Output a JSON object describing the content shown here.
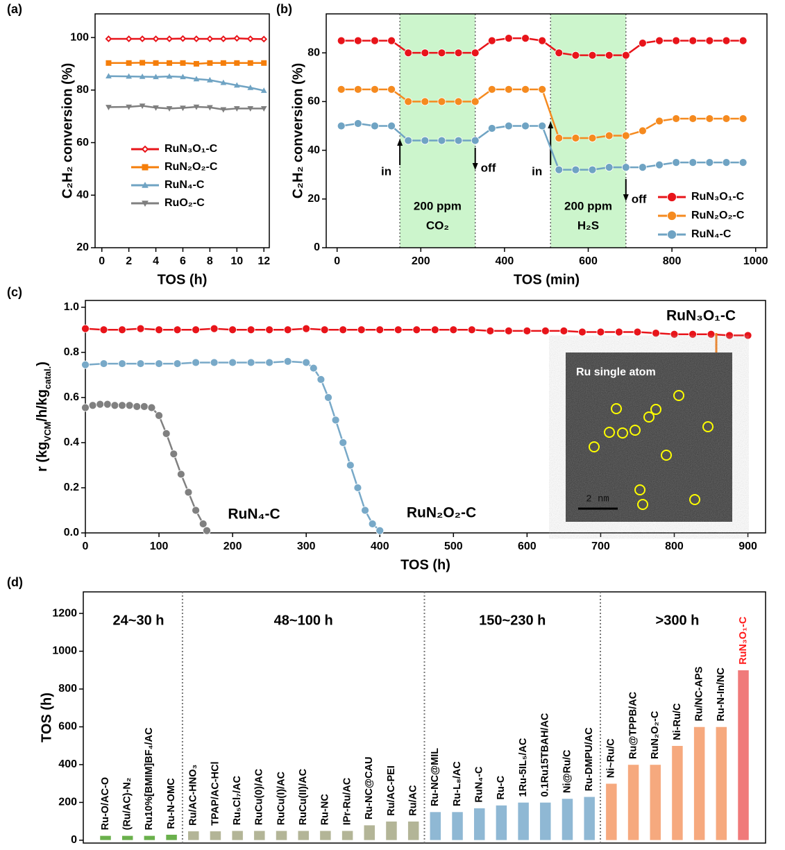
{
  "chart_data": [
    {
      "type": "line",
      "panel_label": "(a)",
      "xlabel": "TOS (h)",
      "ylabel": "C₂H₂ conversion (%)",
      "xlim": [
        -0.5,
        12.4
      ],
      "ylim": [
        20,
        109
      ],
      "xticks": [
        0,
        2,
        4,
        6,
        8,
        10,
        12
      ],
      "yticks": [
        20,
        40,
        60,
        80,
        100
      ],
      "legend": "center",
      "x": [
        0.5,
        2,
        3,
        4,
        5,
        6,
        7,
        8,
        9,
        10,
        11,
        12
      ],
      "series": [
        {
          "name": "RuN₃O₁-C",
          "color": "#e8141a",
          "marker": "diamond",
          "values": [
            99.5,
            99.5,
            99.5,
            99.5,
            99.5,
            99.6,
            99.5,
            99.5,
            99.5,
            99.7,
            99.5,
            99.4
          ]
        },
        {
          "name": "RuN₂O₂-C",
          "color": "#f57e0a",
          "marker": "square",
          "values": [
            90.3,
            90.3,
            90.4,
            90.3,
            90.3,
            90.3,
            90.0,
            90.3,
            90.3,
            90.3,
            90.3,
            90.3
          ]
        },
        {
          "name": "RuN₄-C",
          "color": "#6fa3c3",
          "marker": "triangle",
          "values": [
            85.3,
            85.2,
            85.1,
            85.0,
            85.2,
            85.0,
            84.2,
            83.8,
            82.8,
            81.8,
            80.9,
            79.8
          ]
        },
        {
          "name": "RuO₂-C",
          "color": "#7f7f7f",
          "marker": "triangle-down",
          "values": [
            73.5,
            73.6,
            74.0,
            73.3,
            73.0,
            73.2,
            73.6,
            73.4,
            72.6,
            73.0,
            73.0,
            73.0
          ]
        }
      ]
    },
    {
      "type": "line",
      "panel_label": "(b)",
      "xlabel": "TOS (min)",
      "ylabel": "C₂H₂ conversion (%)",
      "xlim": [
        -26,
        1027
      ],
      "ylim": [
        0,
        96
      ],
      "xticks": [
        0,
        200,
        400,
        600,
        800,
        1000
      ],
      "yticks": [
        0,
        20,
        40,
        60,
        80
      ],
      "legend": "lower right",
      "regions": [
        {
          "x": [
            150,
            330
          ],
          "label": [
            "200 ppm",
            "CO₂"
          ],
          "start_label": "in",
          "end_label": "off",
          "color": "#ccf5cc"
        },
        {
          "x": [
            510,
            690
          ],
          "label": [
            "200 ppm",
            "H₂S"
          ],
          "start_label": "in",
          "end_label": "off",
          "color": "#ccf5cc"
        }
      ],
      "x": [
        10,
        50,
        90,
        130,
        170,
        210,
        250,
        290,
        330,
        370,
        410,
        450,
        490,
        530,
        570,
        610,
        650,
        690,
        730,
        770,
        810,
        850,
        890,
        930,
        970
      ],
      "series": [
        {
          "name": "RuN₃O₁-C",
          "color": "#e8141a",
          "marker": "circle",
          "values": [
            85,
            85,
            85,
            85,
            80,
            80,
            80,
            80,
            80,
            85,
            86,
            86,
            85,
            80,
            79,
            79,
            79,
            79,
            84,
            85,
            85,
            85,
            85,
            85,
            85
          ]
        },
        {
          "name": "RuN₂O₂-C",
          "color": "#f58a1f",
          "marker": "circle",
          "values": [
            65,
            65,
            65,
            65,
            60,
            60,
            60,
            60,
            60,
            65,
            65,
            65,
            65,
            45,
            45,
            45,
            46,
            46,
            48,
            52,
            53,
            53,
            53,
            53,
            53
          ]
        },
        {
          "name": "RuN₄-C",
          "color": "#6fa3c3",
          "marker": "circle",
          "values": [
            50,
            51,
            50,
            50,
            44,
            44,
            44,
            44,
            44,
            49,
            50,
            50,
            50,
            32,
            32,
            32,
            33,
            33,
            33,
            34,
            35,
            35,
            35,
            35,
            35
          ]
        }
      ]
    },
    {
      "type": "line",
      "panel_label": "(c)",
      "xlabel": "TOS (h)",
      "ylabel": [
        "r (kg",
        "VCM",
        "/h/kg",
        "catal.",
        ")"
      ],
      "xlim": [
        0,
        924
      ],
      "ylim": [
        0,
        1.03
      ],
      "xticks": [
        0,
        100,
        200,
        300,
        400,
        500,
        600,
        700,
        800,
        900
      ],
      "yticks": [
        {
          "value": 0,
          "label": "0.0"
        },
        0.2,
        0.4,
        0.6,
        0.8,
        {
          "value": 1,
          "label": "1.0"
        }
      ],
      "legend": "on-lines",
      "inset": {
        "title": "Ru single atom",
        "scale_bar": "2 nm"
      },
      "series": [
        {
          "name": "RuN₃O₁-C",
          "color": "#e8141a",
          "marker": "circle",
          "x": [
            0,
            25,
            50,
            75,
            100,
            125,
            150,
            175,
            200,
            225,
            250,
            275,
            300,
            325,
            350,
            375,
            400,
            425,
            450,
            475,
            500,
            525,
            550,
            575,
            600,
            625,
            650,
            675,
            700,
            725,
            750,
            775,
            800,
            825,
            850,
            875,
            900
          ],
          "values": [
            0.905,
            0.9,
            0.9,
            0.905,
            0.9,
            0.9,
            0.9,
            0.905,
            0.9,
            0.9,
            0.9,
            0.9,
            0.905,
            0.9,
            0.9,
            0.9,
            0.9,
            0.9,
            0.9,
            0.9,
            0.9,
            0.9,
            0.895,
            0.895,
            0.895,
            0.895,
            0.895,
            0.89,
            0.89,
            0.89,
            0.89,
            0.885,
            0.88,
            0.88,
            0.88,
            0.875,
            0.875
          ]
        },
        {
          "name": "RuN₂O₂-C",
          "color": "#78a9c8",
          "marker": "circle",
          "x": [
            0,
            25,
            50,
            75,
            100,
            125,
            150,
            175,
            200,
            225,
            250,
            275,
            300,
            310,
            320,
            330,
            340,
            350,
            360,
            370,
            380,
            390,
            400
          ],
          "values": [
            0.745,
            0.75,
            0.75,
            0.75,
            0.75,
            0.75,
            0.755,
            0.755,
            0.755,
            0.755,
            0.755,
            0.76,
            0.755,
            0.73,
            0.68,
            0.6,
            0.5,
            0.4,
            0.3,
            0.2,
            0.1,
            0.04,
            0.01
          ]
        },
        {
          "name": "RuN₄-C",
          "color": "#808080",
          "marker": "circle",
          "x": [
            0,
            10,
            20,
            30,
            40,
            50,
            60,
            70,
            80,
            90,
            100,
            110,
            120,
            130,
            140,
            150,
            160,
            165
          ],
          "values": [
            0.555,
            0.565,
            0.57,
            0.57,
            0.565,
            0.565,
            0.565,
            0.56,
            0.56,
            0.555,
            0.52,
            0.44,
            0.35,
            0.26,
            0.18,
            0.1,
            0.04,
            0.01
          ]
        }
      ]
    },
    {
      "type": "bar",
      "panel_label": "(d)",
      "ylabel": "TOS (h)",
      "ylim": [
        -15,
        1314
      ],
      "yticks": [
        0,
        200,
        400,
        600,
        800,
        1000,
        1200
      ],
      "groups": [
        {
          "label": "24~30 h",
          "color": "#6ab04c",
          "categories": [
            "Ru-O/AC-O",
            "(Ru/AC)-N₂",
            "Ru10%[BMIM]BF₄/AC",
            "Ru-N-OMC"
          ],
          "values": [
            24,
            24,
            24,
            30
          ]
        },
        {
          "label": "48~100 h",
          "color": "#b3b597",
          "categories": [
            "Ru/AC-HNO₃",
            "TPAP/AC-HCl",
            "Ru₅Cl₇/AC",
            "RuCu(0)/AC",
            "RuCu(I)/AC",
            "RuCu(II)/AC",
            "Ru-NC",
            "IPr-Ru/AC",
            "Ru-NC@CAU",
            "Ru/AC-PEI",
            "Ru/AC"
          ],
          "values": [
            48,
            48,
            50,
            50,
            50,
            50,
            50,
            50,
            80,
            100,
            100
          ]
        },
        {
          "label": "150~230 h",
          "color": "#8fb8d4",
          "categories": [
            "Ru-NC@MIL",
            "Ru-L₈/AC",
            "RuN₄-C",
            "Ru-C",
            "1Ru-5IL₅/AC",
            "0.1Ru15TBAH/AC",
            "Ni@Ru/C",
            "Ru-DMPU/AC"
          ],
          "values": [
            150,
            150,
            170,
            185,
            200,
            200,
            220,
            230
          ]
        },
        {
          "label": ">300 h",
          "colors": [
            "#f6a97e",
            "#f6a97e",
            "#f6a97e",
            "#f6a97e",
            "#f6a97e",
            "#f6a97e",
            "#f07a7a"
          ],
          "label_colors": [
            "#000000",
            "#000000",
            "#000000",
            "#000000",
            "#000000",
            "#000000",
            "#ff1a1a"
          ],
          "categories": [
            "Ni~Ru/C",
            "Ru@TPPB/AC",
            "RuN₂O₂-C",
            "Ni-Ru/C",
            "Ru/NC-APS",
            "Ru-N-In/NC",
            "RuN₃O₁-C"
          ],
          "values": [
            300,
            400,
            400,
            500,
            600,
            600,
            900
          ]
        }
      ]
    }
  ]
}
